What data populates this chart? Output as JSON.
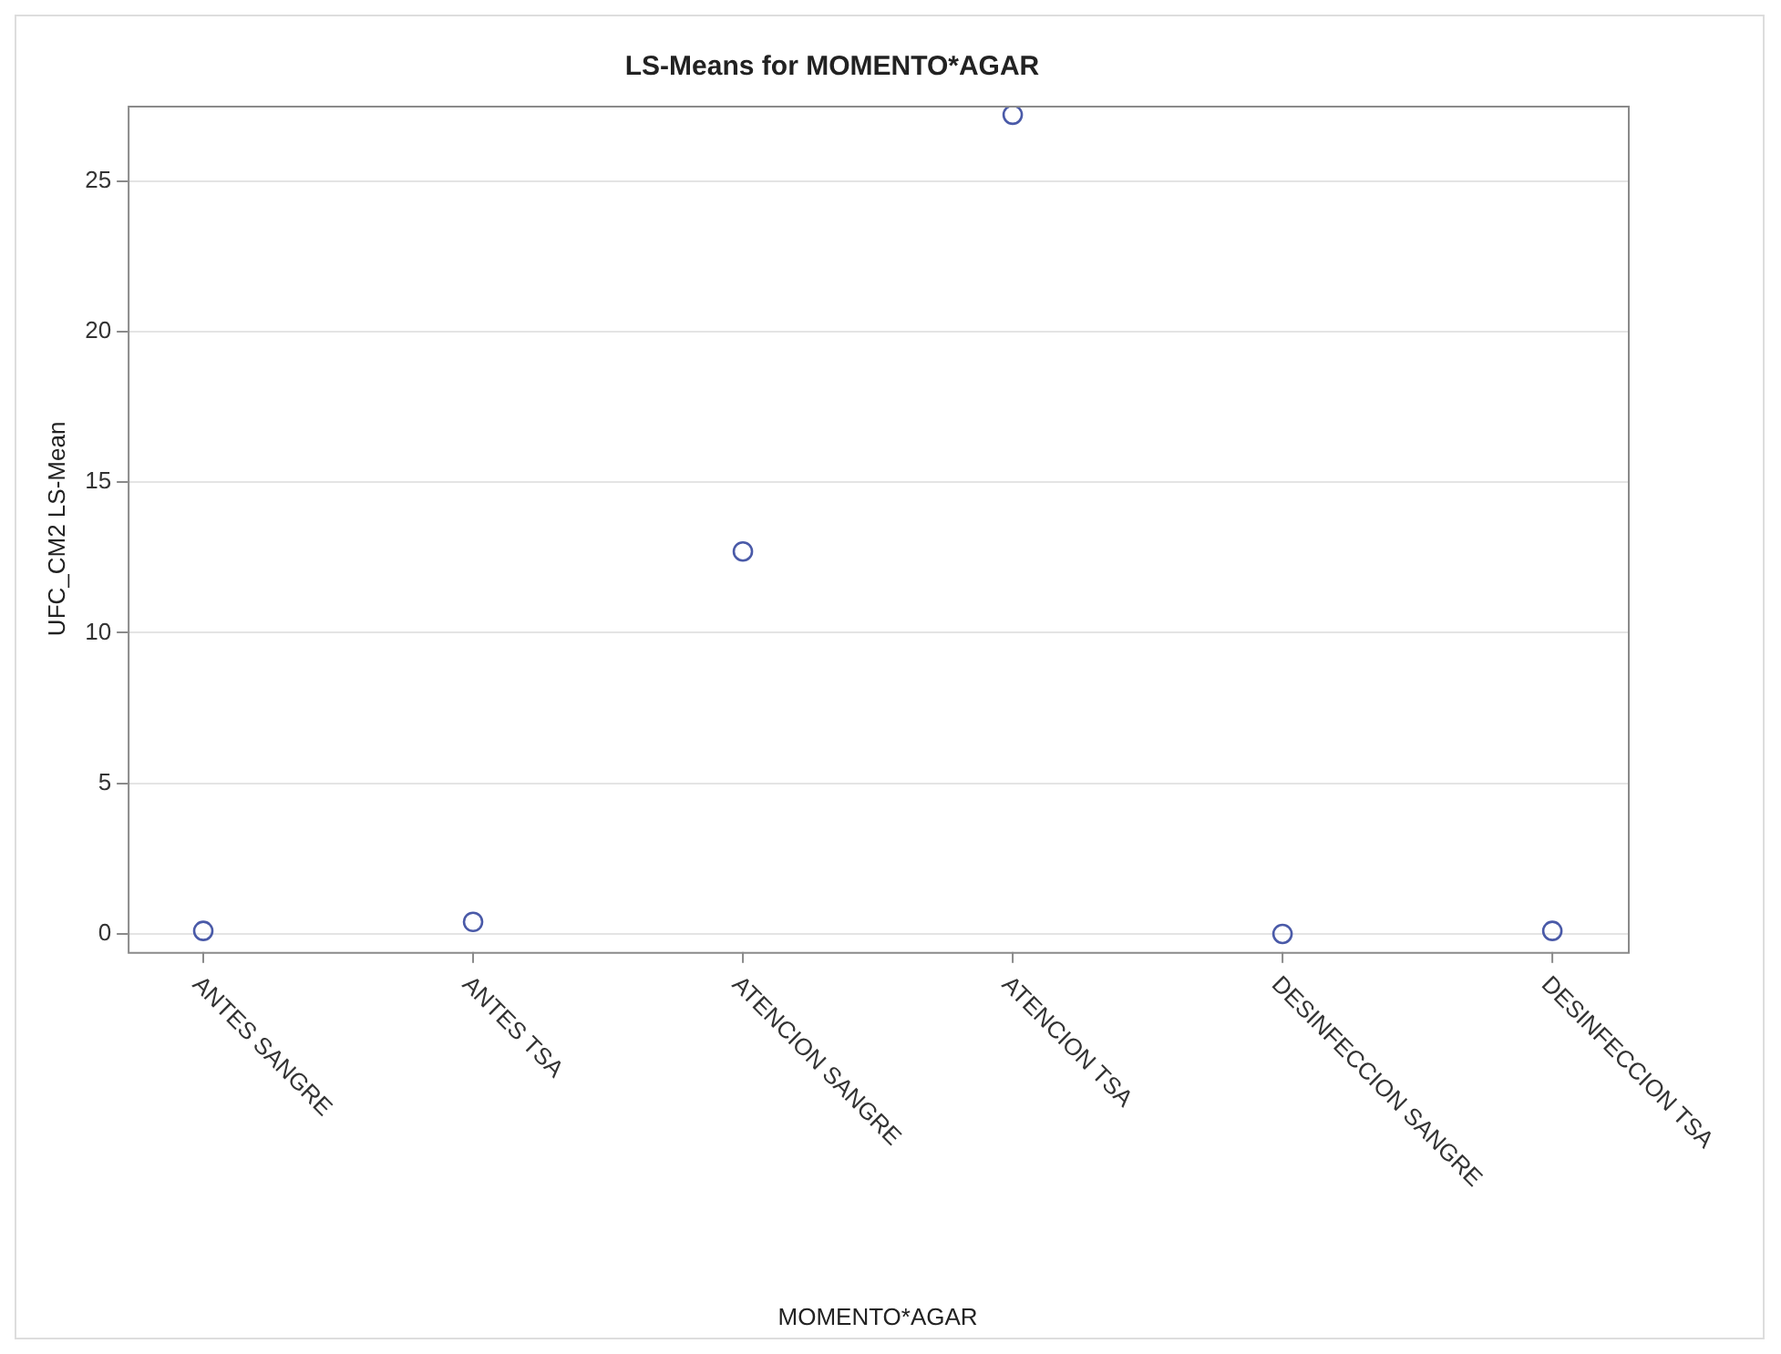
{
  "chart_data": {
    "type": "scatter",
    "title": "LS-Means for MOMENTO*AGAR",
    "xlabel": "MOMENTO*AGAR",
    "ylabel": "UFC_CM2 LS-Mean",
    "categories": [
      "ANTES SANGRE",
      "ANTES TSA",
      "ATENCION SANGRE",
      "ATENCION TSA",
      "DESINFECCION SANGRE",
      "DESINFECCION TSA"
    ],
    "series": [
      {
        "color": "#4a5aa8",
        "values": [
          0.1,
          0.4,
          12.7,
          27.2,
          0,
          0.1
        ]
      }
    ],
    "ylim": [
      -0.6,
      27.5
    ],
    "yticks": [
      0,
      5,
      10,
      15,
      20,
      25
    ],
    "grid": "y",
    "marker": "circle",
    "legend": false
  }
}
